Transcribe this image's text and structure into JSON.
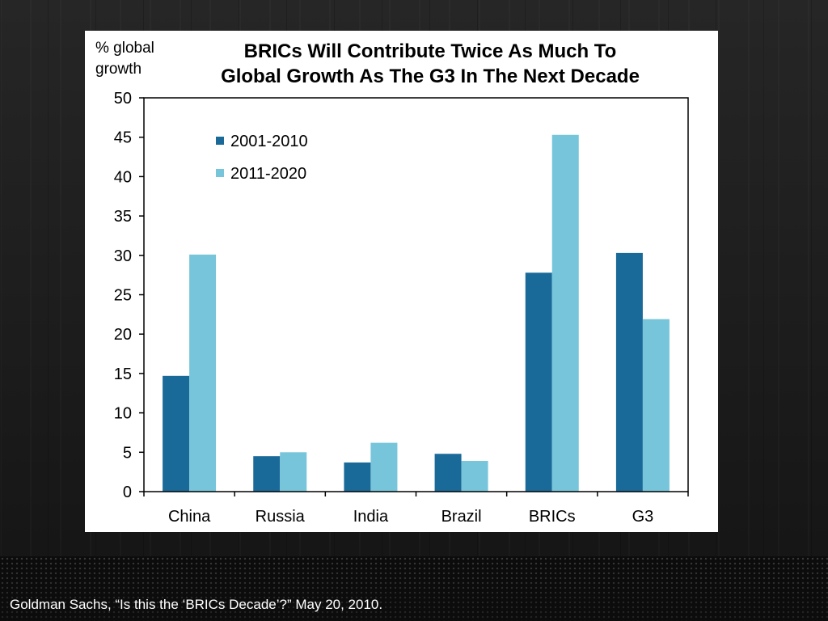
{
  "caption": "Goldman Sachs, “Is this the ‘BRICs Decade’?” May 20, 2010.",
  "colors": {
    "series_2001_2010": "#1a6a99",
    "series_2011_2020": "#77c5da",
    "axis": "#000000",
    "background": "#ffffff"
  },
  "chart_data": {
    "type": "bar",
    "title_lines": [
      "BRICs Will Contribute Twice As Much To",
      "Global Growth As The G3 In The Next Decade"
    ],
    "ylabel_lines": [
      "% global",
      "growth"
    ],
    "xlabel": "",
    "categories": [
      "China",
      "Russia",
      "India",
      "Brazil",
      "BRICs",
      "G3"
    ],
    "series": [
      {
        "name": "2001-2010",
        "values": [
          14.7,
          4.5,
          3.7,
          4.8,
          27.8,
          30.3
        ]
      },
      {
        "name": "2011-2020",
        "values": [
          30.1,
          5.0,
          6.2,
          3.9,
          45.3,
          21.9
        ]
      }
    ],
    "ylim": [
      0,
      50
    ],
    "yticks": [
      0,
      5,
      10,
      15,
      20,
      25,
      30,
      35,
      40,
      45,
      50
    ],
    "grid": false,
    "legend_position": "top-left"
  }
}
